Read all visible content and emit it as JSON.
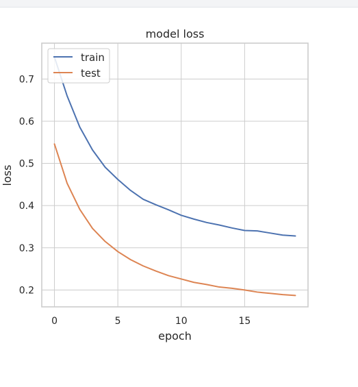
{
  "chart_data": {
    "type": "line",
    "title": "model loss",
    "xlabel": "epoch",
    "ylabel": "loss",
    "x": [
      0,
      1,
      2,
      3,
      4,
      5,
      6,
      7,
      8,
      9,
      10,
      11,
      12,
      13,
      14,
      15,
      16,
      17,
      18,
      19
    ],
    "series": [
      {
        "name": "train",
        "color": "#4c72b0",
        "values": [
          0.752,
          0.66,
          0.586,
          0.532,
          0.491,
          0.462,
          0.436,
          0.415,
          0.402,
          0.39,
          0.377,
          0.368,
          0.36,
          0.354,
          0.347,
          0.341,
          0.34,
          0.335,
          0.33,
          0.328
        ]
      },
      {
        "name": "test",
        "color": "#dd8452",
        "values": [
          0.546,
          0.453,
          0.391,
          0.346,
          0.315,
          0.291,
          0.272,
          0.257,
          0.245,
          0.234,
          0.226,
          0.218,
          0.213,
          0.207,
          0.204,
          0.2,
          0.195,
          0.192,
          0.189,
          0.187
        ]
      }
    ],
    "xlim": [
      -1,
      20
    ],
    "ylim": [
      0.16,
      0.785
    ],
    "xticks": [
      0,
      5,
      10,
      15
    ],
    "yticks": [
      0.2,
      0.3,
      0.4,
      0.5,
      0.6,
      0.7
    ],
    "xtick_labels": [
      "0",
      "5",
      "10",
      "15"
    ],
    "ytick_labels": [
      "0.2",
      "0.3",
      "0.4",
      "0.5",
      "0.6",
      "0.7"
    ],
    "grid": true,
    "legend_position": "top-left"
  }
}
